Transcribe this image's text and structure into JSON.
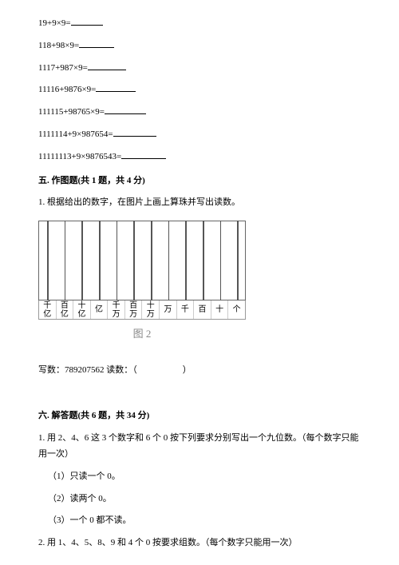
{
  "equations": [
    "19+9×9=",
    "118+98×9=",
    "1117+987×9=",
    "11116+9876×9=",
    "111115+98765×9=",
    "1111114+9×987654=",
    "11111113+9×9876543="
  ],
  "section5": {
    "title": "五. 作图题(共 1 题，共 4 分)",
    "q1": "1. 根据给出的数字，在图片上画上算珠并写出读数。",
    "labels": [
      {
        "t": "千",
        "b": "亿"
      },
      {
        "t": "百",
        "b": "亿"
      },
      {
        "t": "十",
        "b": "亿"
      },
      {
        "t": "亿",
        "b": ""
      },
      {
        "t": "千",
        "b": "万"
      },
      {
        "t": "百",
        "b": "万"
      },
      {
        "t": "十",
        "b": "万"
      },
      {
        "t": "万",
        "b": ""
      },
      {
        "t": "千",
        "b": ""
      },
      {
        "t": "百",
        "b": ""
      },
      {
        "t": "十",
        "b": ""
      },
      {
        "t": "个",
        "b": ""
      }
    ],
    "figcap": "图 2",
    "writeLabel": "写数：",
    "writeNum": "789207562",
    "readLabel": "   读数：（",
    "readClose": "）"
  },
  "section6": {
    "title": "六. 解答题(共 6 题，共 34 分)",
    "q1": "1. 用 2、4、6 这 3 个数字和 6 个 0 按下列要求分别写出一个九位数。（每个数字只能用一次）",
    "q1a": "（1）只读一个 0。",
    "q1b": "（2）读两个 0。",
    "q1c": "（3）一个 0 都不读。",
    "q2": "2. 用 1、4、5、8、9 和 4 个 0 按要求组数。（每个数字只能用一次）"
  },
  "style": {
    "blank_widths": [
      40,
      44,
      48,
      50,
      52,
      54,
      56
    ]
  }
}
